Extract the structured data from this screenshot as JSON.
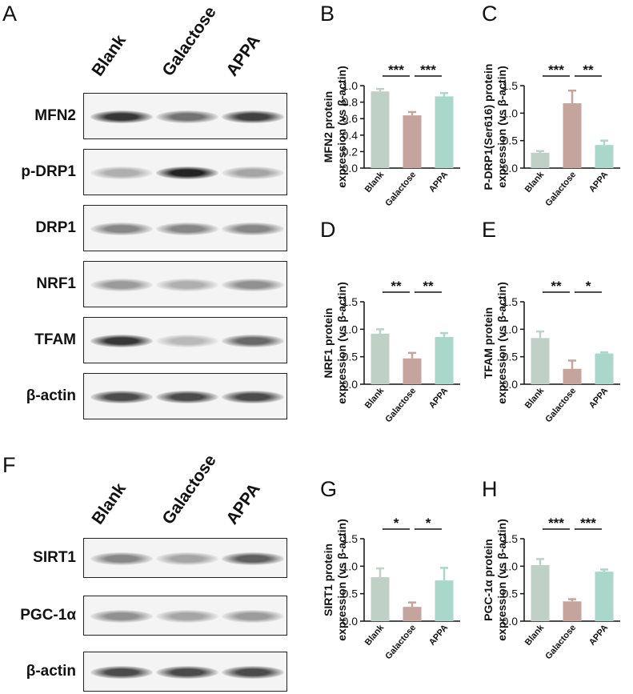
{
  "panels": {
    "A": "A",
    "B": "B",
    "C": "C",
    "D": "D",
    "E": "E",
    "F": "F",
    "G": "G",
    "H": "H"
  },
  "blotA": {
    "lanes": [
      "Blank",
      "Galactose",
      "APPA"
    ],
    "rows": [
      {
        "label": "MFN2",
        "intensity": [
          0.85,
          0.55,
          0.8
        ]
      },
      {
        "label": "p-DRP1",
        "intensity": [
          0.25,
          0.95,
          0.3
        ]
      },
      {
        "label": "DRP1",
        "intensity": [
          0.45,
          0.45,
          0.45
        ]
      },
      {
        "label": "NRF1",
        "intensity": [
          0.35,
          0.25,
          0.4
        ]
      },
      {
        "label": "TFAM",
        "intensity": [
          0.85,
          0.2,
          0.6
        ]
      },
      {
        "label": "β-actin",
        "intensity": [
          0.75,
          0.75,
          0.75
        ]
      }
    ]
  },
  "blotF": {
    "lanes": [
      "Blank",
      "Galactose",
      "APPA"
    ],
    "rows": [
      {
        "label": "SIRT1",
        "intensity": [
          0.45,
          0.3,
          0.65
        ]
      },
      {
        "label": "PGC-1α",
        "intensity": [
          0.4,
          0.3,
          0.35
        ]
      },
      {
        "label": "β-actin",
        "intensity": [
          0.75,
          0.75,
          0.75
        ]
      }
    ]
  },
  "colors": {
    "Blank": "#bfd0c6",
    "Galactose": "#c6a49e",
    "APPA": "#a9d8cb"
  },
  "chart_data": [
    {
      "panel": "B",
      "type": "bar",
      "categories": [
        "Blank",
        "Galactose",
        "APPA"
      ],
      "values": [
        0.93,
        0.64,
        0.87
      ],
      "errors": [
        0.03,
        0.04,
        0.04
      ],
      "ylabel": [
        "MFN2 protein",
        "expression (vs β-actin)"
      ],
      "ylim": [
        0,
        1.0
      ],
      "yticks": [
        "0.0",
        "0.2",
        "0.4",
        "0.6",
        "0.8",
        "1.0"
      ],
      "sig": [
        {
          "from": 0,
          "to": 1,
          "label": "***"
        },
        {
          "from": 1,
          "to": 2,
          "label": "***"
        }
      ]
    },
    {
      "panel": "C",
      "type": "bar",
      "categories": [
        "Blank",
        "Galactose",
        "APPA"
      ],
      "values": [
        0.28,
        1.18,
        0.42
      ],
      "errors": [
        0.03,
        0.23,
        0.08
      ],
      "ylabel": [
        "P-DRP1(Ser616) protein",
        "expression (vs β-actin)"
      ],
      "ylim": [
        0,
        1.5
      ],
      "yticks": [
        "0.0",
        "0.5",
        "1.0",
        "1.5"
      ],
      "sig": [
        {
          "from": 0,
          "to": 1,
          "label": "***"
        },
        {
          "from": 1,
          "to": 2,
          "label": "**"
        }
      ]
    },
    {
      "panel": "D",
      "type": "bar",
      "categories": [
        "Blank",
        "Galactose",
        "APPA"
      ],
      "values": [
        0.92,
        0.47,
        0.86
      ],
      "errors": [
        0.08,
        0.1,
        0.07
      ],
      "ylabel": [
        "NRF1 protein",
        "expression (vs β-actin)"
      ],
      "ylim": [
        0,
        1.5
      ],
      "yticks": [
        "0.0",
        "0.5",
        "1.0",
        "1.5"
      ],
      "sig": [
        {
          "from": 0,
          "to": 1,
          "label": "**"
        },
        {
          "from": 1,
          "to": 2,
          "label": "**"
        }
      ]
    },
    {
      "panel": "E",
      "type": "bar",
      "categories": [
        "Blank",
        "Galactose",
        "APPA"
      ],
      "values": [
        0.84,
        0.28,
        0.56
      ],
      "errors": [
        0.12,
        0.15,
        0.02
      ],
      "ylabel": [
        "TFAM protein",
        "expression (vs β-actin)"
      ],
      "ylim": [
        0,
        1.5
      ],
      "yticks": [
        "0.0",
        "0.5",
        "1.0",
        "1.5"
      ],
      "sig": [
        {
          "from": 0,
          "to": 1,
          "label": "**"
        },
        {
          "from": 1,
          "to": 2,
          "label": "*"
        }
      ]
    },
    {
      "panel": "G",
      "type": "bar",
      "categories": [
        "Blank",
        "Galactose",
        "APPA"
      ],
      "values": [
        0.8,
        0.26,
        0.74
      ],
      "errors": [
        0.16,
        0.08,
        0.23
      ],
      "ylabel": [
        "SIRT1 protein",
        "expression (vs β-actin)"
      ],
      "ylim": [
        0,
        1.5
      ],
      "yticks": [
        "0.0",
        "0.5",
        "1.0",
        "1.5"
      ],
      "sig": [
        {
          "from": 0,
          "to": 1,
          "label": "*"
        },
        {
          "from": 1,
          "to": 2,
          "label": "*"
        }
      ]
    },
    {
      "panel": "H",
      "type": "bar",
      "categories": [
        "Blank",
        "Galactose",
        "APPA"
      ],
      "values": [
        1.02,
        0.36,
        0.9
      ],
      "errors": [
        0.11,
        0.04,
        0.04
      ],
      "ylabel": [
        "PGC-1α protein",
        "expression (vs β-actin)"
      ],
      "ylim": [
        0,
        1.5
      ],
      "yticks": [
        "0.0",
        "0.5",
        "1.0",
        "1.5"
      ],
      "sig": [
        {
          "from": 0,
          "to": 1,
          "label": "***"
        },
        {
          "from": 1,
          "to": 2,
          "label": "***"
        }
      ]
    }
  ]
}
